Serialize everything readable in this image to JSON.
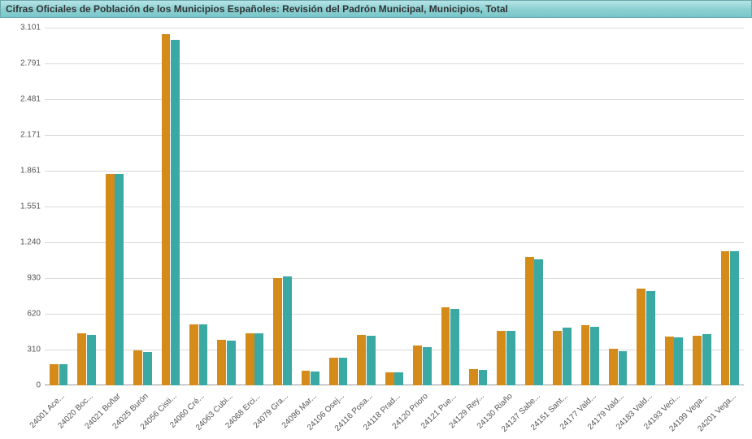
{
  "title": "Cifras Oficiales de Población de los Municipios Españoles: Revisión del Padrón Municipal, Municipios, Total",
  "chart": {
    "type": "bar",
    "y": {
      "min": 0,
      "max": 3101,
      "ticks": [
        0,
        310,
        620,
        930,
        1240,
        1551,
        1861,
        2171,
        2481,
        2791,
        3101
      ],
      "tick_labels": [
        "0",
        "310",
        "620",
        "930",
        "1.240",
        "1.551",
        "1.861",
        "2.171",
        "2.481",
        "2.791",
        "3.101"
      ]
    },
    "series_colors": [
      "#d48b1a",
      "#3aa9a4"
    ],
    "grid_color": "#d9d9d9",
    "background_color": "#ffffff",
    "title_bg_gradient": [
      "#b8e4e6",
      "#79c6c9"
    ],
    "bar_group_gap": 0.35,
    "bar_inner_gap": 0.02,
    "label_fontsize": 10,
    "categories": [
      {
        "label": "24001 Ace...",
        "values": [
          185,
          180
        ]
      },
      {
        "label": "24020 Boc...",
        "values": [
          450,
          440
        ]
      },
      {
        "label": "24021 Boñar",
        "values": [
          1830,
          1830
        ]
      },
      {
        "label": "24025 Burón",
        "values": [
          300,
          290
        ]
      },
      {
        "label": "24056 Cisti...",
        "values": [
          3045,
          2995
        ]
      },
      {
        "label": "24060 Cré...",
        "values": [
          530,
          530
        ]
      },
      {
        "label": "24063 Cubi...",
        "values": [
          395,
          385
        ]
      },
      {
        "label": "24068 Erci...",
        "values": [
          450,
          450
        ]
      },
      {
        "label": "24079 Gra...",
        "values": [
          930,
          945
        ]
      },
      {
        "label": "24096 Mar...",
        "values": [
          125,
          120
        ]
      },
      {
        "label": "24106 Osej...",
        "values": [
          240,
          240
        ]
      },
      {
        "label": "24116 Posa...",
        "values": [
          435,
          430
        ]
      },
      {
        "label": "24118 Prad...",
        "values": [
          115,
          115
        ]
      },
      {
        "label": "24120 Prioro",
        "values": [
          345,
          330
        ]
      },
      {
        "label": "24121 Pue...",
        "values": [
          675,
          660
        ]
      },
      {
        "label": "24129 Rey...",
        "values": [
          140,
          135
        ]
      },
      {
        "label": "24130 Riaño",
        "values": [
          475,
          470
        ]
      },
      {
        "label": "24137 Sabe...",
        "values": [
          1115,
          1090
        ]
      },
      {
        "label": "24151 Sant...",
        "values": [
          475,
          500
        ]
      },
      {
        "label": "24177 Vald...",
        "values": [
          525,
          505
        ]
      },
      {
        "label": "24179 Vald...",
        "values": [
          315,
          295
        ]
      },
      {
        "label": "24183 Vald...",
        "values": [
          840,
          820
        ]
      },
      {
        "label": "24193 Veci...",
        "values": [
          420,
          415
        ]
      },
      {
        "label": "24199 Vega...",
        "values": [
          430,
          445
        ]
      },
      {
        "label": "24201 Vega...",
        "values": [
          1160,
          1165
        ]
      }
    ]
  }
}
